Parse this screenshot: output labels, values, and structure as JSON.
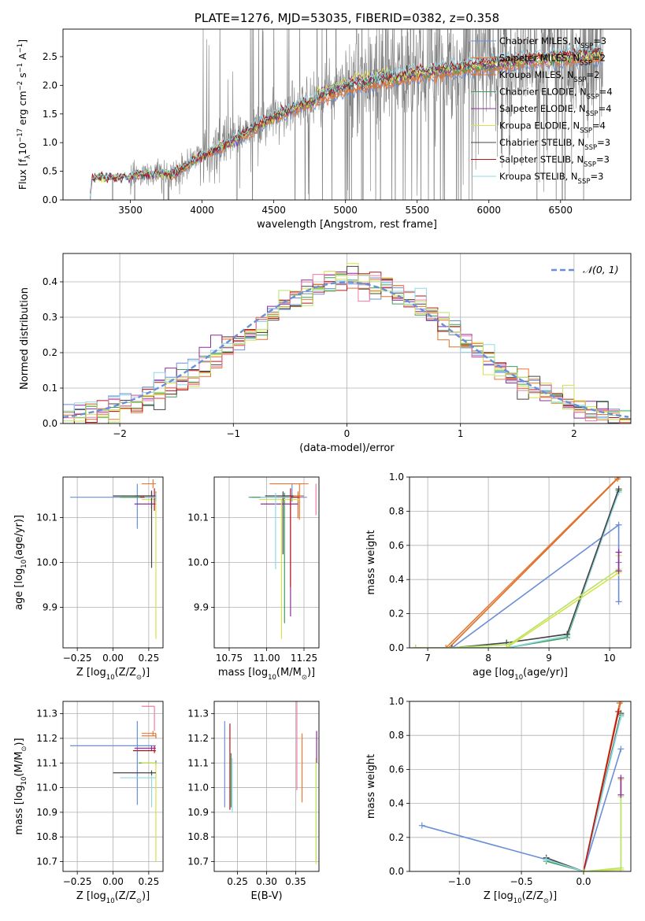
{
  "colors": {
    "chabrier_miles": "#6a8fd8",
    "salpeter_miles": "#ee7733",
    "kroupa_miles": "#d9722b",
    "chabrier_elodie": "#3f9f5a",
    "salpeter_elodie": "#8e2c9e",
    "kroupa_elodie": "#d8e04a",
    "chabrier_stelib": "#444444",
    "salpeter_stelib": "#b8161b",
    "kroupa_stelib": "#8fd8e6",
    "data_spectrum": "#808080",
    "pink": "#ee7ba8",
    "lime": "#b7e36a",
    "grid": "#b0b0b0"
  },
  "chart_data": [
    {
      "id": "spectrum",
      "type": "line",
      "title": "PLATE=1276, MJD=53035, FIBERID=0382, z=0.358",
      "xlabel": "wavelength [Angstrom, rest frame]",
      "ylabel": "Flux [f",
      "ylabel_sub": "λ",
      "ylabel_rest": "10",
      "ylabel_sup1": "−17",
      "ylabel_rest2": " erg cm",
      "ylabel_sup2": "−2",
      "ylabel_rest3": " s",
      "ylabel_sup3": "−1",
      "ylabel_rest4": " A",
      "ylabel_sup4": "−1",
      "ylabel_end": "]",
      "xlim": [
        3030,
        6990
      ],
      "ylim": [
        0,
        2.98
      ],
      "xticks": [
        "3500",
        "4000",
        "4500",
        "5000",
        "5500",
        "6000",
        "6500"
      ],
      "yticks": [
        "0.0",
        "0.5",
        "1.0",
        "1.5",
        "2.0",
        "2.5"
      ],
      "grid": false,
      "legend_position": "top-right",
      "legend": [
        {
          "name": "Chabrier MILES, N",
          "sub": "SSP",
          "suffix": "=3"
        },
        {
          "name": "Salpeter MILES, N",
          "sub": "SSP",
          "suffix": "=2"
        },
        {
          "name": "Kroupa MILES, N",
          "sub": "SSP",
          "suffix": "=2"
        },
        {
          "name": "Chabrier ELODIE, N",
          "sub": "SSP",
          "suffix": "=4"
        },
        {
          "name": "Salpeter ELODIE, N",
          "sub": "SSP",
          "suffix": "=4"
        },
        {
          "name": "Kroupa ELODIE, N",
          "sub": "SSP",
          "suffix": "=4"
        },
        {
          "name": "Chabrier STELIB, N",
          "sub": "SSP",
          "suffix": "=3"
        },
        {
          "name": "Salpeter STELIB, N",
          "sub": "SSP",
          "suffix": "=3"
        },
        {
          "name": "Kroupa STELIB, N",
          "sub": "SSP",
          "suffix": "=3"
        }
      ],
      "data_spectrum_range": [
        3220,
        6800
      ],
      "model_trend": [
        [
          3220,
          0.0
        ],
        [
          3230,
          0.38
        ],
        [
          3500,
          0.4
        ],
        [
          3520,
          0.45
        ],
        [
          3800,
          0.45
        ],
        [
          4000,
          0.78
        ],
        [
          4200,
          1.0
        ],
        [
          4500,
          1.45
        ],
        [
          4800,
          1.75
        ],
        [
          5000,
          1.95
        ],
        [
          5200,
          2.05
        ],
        [
          5500,
          2.2
        ],
        [
          5800,
          2.3
        ],
        [
          6000,
          2.35
        ],
        [
          6300,
          2.45
        ],
        [
          6600,
          2.5
        ],
        [
          6800,
          2.55
        ]
      ]
    },
    {
      "id": "residuals",
      "type": "line",
      "xlabel": "(data-model)/error",
      "ylabel": "Normed distribution",
      "xlim": [
        -2.5,
        2.5
      ],
      "ylim": [
        0,
        0.48
      ],
      "xticks": [
        "−2",
        "−1",
        "0",
        "1",
        "2"
      ],
      "yticks": [
        "0.0",
        "0.1",
        "0.2",
        "0.3",
        "0.4"
      ],
      "grid": true,
      "legend_position": "top-right",
      "legend": [
        {
          "name": "𝒩(0, 1)"
        }
      ],
      "bin_width": 0.1,
      "normal_curve": {
        "mu": 0,
        "sigma": 1
      }
    },
    {
      "id": "age_vs_Z",
      "type": "scatter",
      "xlabel": "Z [log",
      "xlabel_sub": "10",
      "xlabel_rest": "(Z/Z",
      "xlabel_sub2": "⊙",
      "xlabel_end": ")]",
      "ylabel": "age  [log",
      "ylabel_sub": "10",
      "ylabel_rest": "(age/yr)]",
      "xlim": [
        -0.35,
        0.35
      ],
      "ylim": [
        9.81,
        10.19
      ],
      "xticks": [
        "−0.25",
        "0.00",
        "0.25"
      ],
      "yticks": [
        "9.9",
        "10.0",
        "10.1"
      ],
      "grid": true,
      "points": [
        {
          "x": 0.17,
          "y": 10.145,
          "xerr": [
            0.47,
            0.13
          ],
          "yerr": [
            0.07,
            0.03
          ],
          "color": "chabrier_miles"
        },
        {
          "x": 0.28,
          "y": 10.175,
          "xerr": [
            0.08,
            0.02
          ],
          "yerr": [
            0.01,
            0.01
          ],
          "color": "salpeter_miles"
        },
        {
          "x": 0.3,
          "y": 10.148,
          "xerr": [
            0.15,
            0.0
          ],
          "yerr": [
            0.01,
            0.01
          ],
          "color": "kroupa_miles"
        },
        {
          "x": 0.3,
          "y": 10.145,
          "xerr": [
            0.25,
            0.0
          ],
          "yerr": [
            0.01,
            0.01
          ],
          "color": "chabrier_elodie"
        },
        {
          "x": 0.27,
          "y": 10.13,
          "xerr": [
            0.12,
            0.03
          ],
          "yerr": [
            0.01,
            0.03
          ],
          "color": "salpeter_elodie"
        },
        {
          "x": 0.3,
          "y": 10.14,
          "xerr": [
            0.1,
            0.0
          ],
          "yerr": [
            0.31,
            0.0
          ],
          "color": "kroupa_elodie"
        },
        {
          "x": 0.27,
          "y": 10.148,
          "xerr": [
            0.27,
            0.03
          ],
          "yerr": [
            0.16,
            0.01
          ],
          "color": "chabrier_stelib"
        },
        {
          "x": 0.29,
          "y": 10.145,
          "xerr": [
            0.1,
            0.01
          ],
          "yerr": [
            0.03,
            0.02
          ],
          "color": "salpeter_stelib"
        },
        {
          "x": 0.3,
          "y": 10.145,
          "xerr": [
            0.08,
            0.0
          ],
          "yerr": [
            0.01,
            0.01
          ],
          "color": "kroupa_stelib"
        }
      ]
    },
    {
      "id": "age_vs_mass",
      "type": "scatter",
      "xlabel": "mass [log",
      "xlabel_sub": "10",
      "xlabel_rest": "(M/M",
      "xlabel_sub2": "⊙",
      "xlabel_end": ")]",
      "xlim": [
        10.65,
        11.35
      ],
      "ylim": [
        9.81,
        10.19
      ],
      "xticks": [
        "10.75",
        "11.00",
        "11.25"
      ],
      "yticks": [
        "9.9",
        "10.0",
        "10.1"
      ],
      "grid": true,
      "points": [
        {
          "x": 11.17,
          "y": 10.145,
          "xerr": [
            0.27,
            0.1
          ],
          "yerr": [
            0.01,
            0.03
          ],
          "color": "chabrier_miles"
        },
        {
          "x": 11.22,
          "y": 10.175,
          "xerr": [
            0.2,
            0.06
          ],
          "yerr": [
            0.08,
            0.0
          ],
          "color": "salpeter_miles"
        },
        {
          "x": 11.21,
          "y": 10.148,
          "xerr": [
            0.1,
            0.04
          ],
          "yerr": [
            0.05,
            0.01
          ],
          "color": "kroupa_miles"
        },
        {
          "x": 11.12,
          "y": 10.145,
          "xerr": [
            0.24,
            0.08
          ],
          "yerr": [
            0.28,
            0.01
          ],
          "color": "chabrier_elodie"
        },
        {
          "x": 11.16,
          "y": 10.13,
          "xerr": [
            0.2,
            0.05
          ],
          "yerr": [
            0.25,
            0.01
          ],
          "color": "salpeter_elodie"
        },
        {
          "x": 11.1,
          "y": 10.14,
          "xerr": [
            0.15,
            0.12
          ],
          "yerr": [
            0.31,
            0.0
          ],
          "color": "kroupa_elodie"
        },
        {
          "x": 11.11,
          "y": 10.148,
          "xerr": [
            0.12,
            0.07
          ],
          "yerr": [
            0.13,
            0.01
          ],
          "color": "chabrier_stelib"
        },
        {
          "x": 11.16,
          "y": 10.145,
          "xerr": [
            0.1,
            0.06
          ],
          "yerr": [
            0.2,
            0.02
          ],
          "color": "salpeter_stelib"
        },
        {
          "x": 11.06,
          "y": 10.145,
          "xerr": [
            0.1,
            0.1
          ],
          "yerr": [
            0.16,
            0.01
          ],
          "color": "kroupa_stelib"
        },
        {
          "x": 11.33,
          "y": 10.175,
          "xerr": [
            0.0,
            0.0
          ],
          "yerr": [
            0.07,
            0.0
          ],
          "color": "pink"
        }
      ]
    },
    {
      "id": "massweight_vs_age",
      "type": "line",
      "xlabel": "age  [log",
      "xlabel_sub": "10",
      "xlabel_rest": "(age/yr)]",
      "ylabel": "mass weight",
      "xlim": [
        6.7,
        10.35
      ],
      "ylim": [
        0,
        1.0
      ],
      "xticks": [
        "7",
        "8",
        "9",
        "10"
      ],
      "yticks": [
        "0.0",
        "0.2",
        "0.4",
        "0.6",
        "0.8",
        "1.0"
      ],
      "grid": true,
      "series": [
        {
          "color": "salpeter_miles",
          "x": [
            7.3,
            10.15
          ],
          "y": [
            0.0,
            1.0
          ]
        },
        {
          "color": "kroupa_miles",
          "x": [
            7.35,
            10.13
          ],
          "y": [
            0.0,
            0.99
          ]
        },
        {
          "color": "chabrier_miles",
          "x": [
            7.4,
            10.15,
            10.15,
            10.15
          ],
          "y": [
            0.0,
            0.72,
            0.5,
            0.27
          ]
        },
        {
          "color": "chabrier_elodie",
          "x": [
            6.8,
            8.3,
            9.3,
            10.15
          ],
          "y": [
            0.0,
            0.0,
            0.06,
            0.92
          ]
        },
        {
          "color": "kroupa_stelib",
          "x": [
            6.8,
            8.3,
            9.3,
            10.15
          ],
          "y": [
            0.0,
            0.0,
            0.07,
            0.91
          ]
        },
        {
          "color": "chabrier_stelib",
          "x": [
            7.4,
            8.3,
            9.3,
            10.15
          ],
          "y": [
            0.0,
            0.03,
            0.08,
            0.93
          ]
        },
        {
          "color": "kroupa_elodie",
          "x": [
            6.8,
            8.3,
            10.15,
            10.15
          ],
          "y": [
            0.0,
            0.0,
            0.44,
            0.54
          ]
        },
        {
          "color": "lime",
          "x": [
            7.35,
            8.35,
            10.15
          ],
          "y": [
            0.0,
            0.02,
            0.46
          ]
        },
        {
          "color": "salpeter_elodie",
          "x": [
            10.15,
            10.15
          ],
          "y": [
            0.45,
            0.56
          ]
        }
      ]
    },
    {
      "id": "mass_vs_Z",
      "type": "scatter",
      "xlabel": "Z [log",
      "xlabel_sub": "10",
      "xlabel_rest": "(Z/Z",
      "xlabel_sub2": "⊙",
      "xlabel_end": ")]",
      "ylabel": "mass [log",
      "ylabel_sub": "10",
      "ylabel_rest": "(M/M",
      "ylabel_sub2": "⊙",
      "ylabel_end": ")]",
      "xlim": [
        -0.35,
        0.35
      ],
      "ylim": [
        10.66,
        11.35
      ],
      "xticks": [
        "−0.25",
        "0.00",
        "0.25"
      ],
      "yticks": [
        "10.7",
        "10.8",
        "10.9",
        "11.0",
        "11.1",
        "11.2",
        "11.3"
      ],
      "grid": true,
      "points": [
        {
          "x": 0.17,
          "y": 11.17,
          "xerr": [
            0.47,
            0.13
          ],
          "yerr": [
            0.24,
            0.1
          ],
          "color": "chabrier_miles"
        },
        {
          "x": 0.28,
          "y": 11.22,
          "xerr": [
            0.08,
            0.02
          ],
          "yerr": [
            0.01,
            0.01
          ],
          "color": "salpeter_miles"
        },
        {
          "x": 0.3,
          "y": 11.21,
          "xerr": [
            0.1,
            0.0
          ],
          "yerr": [
            0.01,
            0.01
          ],
          "color": "kroupa_miles"
        },
        {
          "x": 0.3,
          "y": 11.1,
          "xerr": [
            0.12,
            0.0
          ],
          "yerr": [
            0.01,
            0.01
          ],
          "color": "chabrier_elodie"
        },
        {
          "x": 0.27,
          "y": 11.16,
          "xerr": [
            0.12,
            0.03
          ],
          "yerr": [
            0.01,
            0.01
          ],
          "color": "salpeter_elodie"
        },
        {
          "x": 0.3,
          "y": 11.1,
          "xerr": [
            0.1,
            0.0
          ],
          "yerr": [
            0.4,
            0.0
          ],
          "color": "kroupa_elodie"
        },
        {
          "x": 0.27,
          "y": 11.06,
          "xerr": [
            0.27,
            0.03
          ],
          "yerr": [
            0.01,
            0.01
          ],
          "color": "chabrier_stelib"
        },
        {
          "x": 0.29,
          "y": 11.15,
          "xerr": [
            0.15,
            0.01
          ],
          "yerr": [
            0.01,
            0.02
          ],
          "color": "salpeter_stelib"
        },
        {
          "x": 0.27,
          "y": 11.04,
          "xerr": [
            0.22,
            0.03
          ],
          "yerr": [
            0.12,
            0.01
          ],
          "color": "kroupa_stelib"
        },
        {
          "x": 0.29,
          "y": 11.33,
          "xerr": [
            0.09,
            0.0
          ],
          "yerr": [
            0.1,
            0.0
          ],
          "color": "pink"
        }
      ]
    },
    {
      "id": "mass_vs_ebv",
      "type": "scatter",
      "xlabel": "E(B-V)",
      "xlim": [
        0.21,
        0.39
      ],
      "ylim": [
        10.66,
        11.35
      ],
      "xticks": [
        "0.25",
        "0.30",
        "0.35"
      ],
      "yticks": [
        "10.7",
        "10.8",
        "10.9",
        "11.0",
        "11.1",
        "11.2",
        "11.3"
      ],
      "grid": true,
      "vlines": [
        {
          "x": 0.228,
          "y": [
            10.92,
            11.27
          ],
          "color": "chabrier_miles"
        },
        {
          "x": 0.237,
          "y": [
            10.91,
            11.26
          ],
          "color": "salpeter_stelib"
        },
        {
          "x": 0.239,
          "y": [
            10.92,
            11.14
          ],
          "color": "chabrier_elodie"
        },
        {
          "x": 0.241,
          "y": [
            10.9,
            11.12
          ],
          "color": "kroupa_stelib"
        },
        {
          "x": 0.352,
          "y": [
            10.99,
            11.35
          ],
          "color": "pink"
        },
        {
          "x": 0.361,
          "y": [
            10.94,
            11.22
          ],
          "color": "salpeter_miles"
        },
        {
          "x": 0.385,
          "y": [
            10.69,
            11.12
          ],
          "color": "kroupa_elodie"
        },
        {
          "x": 0.386,
          "y": [
            11.1,
            11.23
          ],
          "color": "salpeter_elodie"
        },
        {
          "x": 0.385,
          "y": [
            10.7,
            11.1
          ],
          "color": "lime"
        }
      ]
    },
    {
      "id": "massweight_vs_Z",
      "type": "line",
      "xlabel": "Z [log",
      "xlabel_sub": "10",
      "xlabel_rest": "(Z/Z",
      "xlabel_sub2": "⊙",
      "xlabel_end": ")]",
      "ylabel": "mass weight",
      "xlim": [
        -1.4,
        0.38
      ],
      "ylim": [
        0,
        1.0
      ],
      "xticks": [
        "−1.0",
        "−0.5",
        "0.0"
      ],
      "yticks": [
        "0.0",
        "0.2",
        "0.4",
        "0.6",
        "0.8",
        "1.0"
      ],
      "grid": true,
      "series": [
        {
          "color": "chabrier_miles",
          "x": [
            -1.3,
            -0.3,
            0.0,
            0.3
          ],
          "y": [
            0.27,
            0.07,
            0.0,
            0.72
          ]
        },
        {
          "color": "chabrier_stelib",
          "x": [
            -0.3,
            0.0,
            0.3
          ],
          "y": [
            0.08,
            0.0,
            0.93
          ]
        },
        {
          "color": "chabrier_elodie",
          "x": [
            -0.3,
            0.0,
            0.3
          ],
          "y": [
            0.06,
            0.0,
            0.92
          ]
        },
        {
          "color": "kroupa_stelib",
          "x": [
            -0.3,
            0.0,
            0.3
          ],
          "y": [
            0.07,
            0.0,
            0.91
          ]
        },
        {
          "color": "salpeter_miles",
          "x": [
            0.0,
            0.3
          ],
          "y": [
            0.0,
            1.0
          ]
        },
        {
          "color": "kroupa_miles",
          "x": [
            0.0,
            0.29
          ],
          "y": [
            0.0,
            0.99
          ]
        },
        {
          "color": "salpeter_stelib",
          "x": [
            0.0,
            0.28
          ],
          "y": [
            0.0,
            0.94
          ]
        },
        {
          "color": "kroupa_elodie",
          "x": [
            0.0,
            0.3,
            0.3
          ],
          "y": [
            0.0,
            0.01,
            0.54
          ]
        },
        {
          "color": "lime",
          "x": [
            0.0,
            0.3,
            0.3
          ],
          "y": [
            0.0,
            0.02,
            0.44
          ]
        },
        {
          "color": "salpeter_elodie",
          "x": [
            0.3,
            0.3
          ],
          "y": [
            0.45,
            0.55
          ]
        }
      ]
    }
  ]
}
